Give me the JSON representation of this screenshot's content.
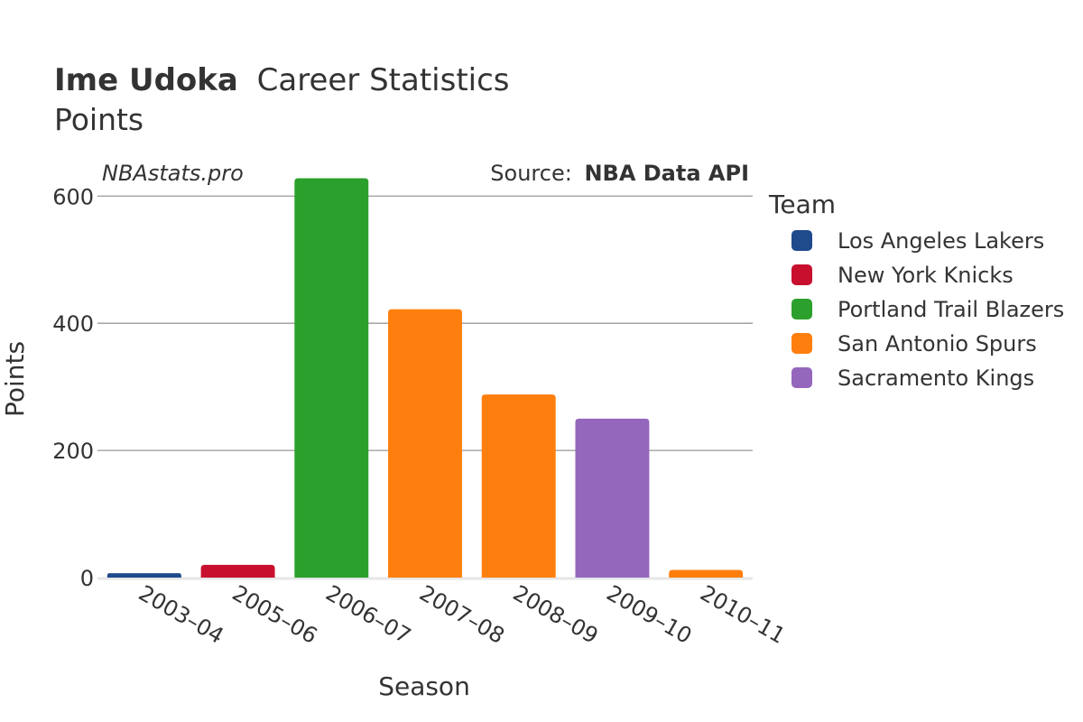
{
  "chart_data": {
    "type": "bar",
    "title_bold": "Ime Udoka",
    "title_rest": "Career Statistics",
    "subtitle": "Points",
    "brand": "NBAstats.pro",
    "source_label": "Source:",
    "source_name": "NBA Data API",
    "xlabel": "Season",
    "ylabel": "Points",
    "ylim": [
      0,
      660
    ],
    "yticks": [
      0,
      200,
      400,
      600
    ],
    "grid": true,
    "legend_title": "Team",
    "legend_position": "right",
    "teams": [
      {
        "name": "Los Angeles Lakers",
        "color": "#1f4a8c"
      },
      {
        "name": "New York Knicks",
        "color": "#c8102e"
      },
      {
        "name": "Portland Trail Blazers",
        "color": "#2ca02c"
      },
      {
        "name": "San Antonio Spurs",
        "color": "#ff7f0e"
      },
      {
        "name": "Sacramento Kings",
        "color": "#9467bd"
      }
    ],
    "categories": [
      "2003–04",
      "2005–06",
      "2006–07",
      "2007–08",
      "2008–09",
      "2009–10",
      "2010–11"
    ],
    "values": [
      7,
      20,
      628,
      422,
      288,
      250,
      12
    ],
    "bar_teams": [
      0,
      1,
      2,
      3,
      3,
      4,
      3
    ]
  }
}
